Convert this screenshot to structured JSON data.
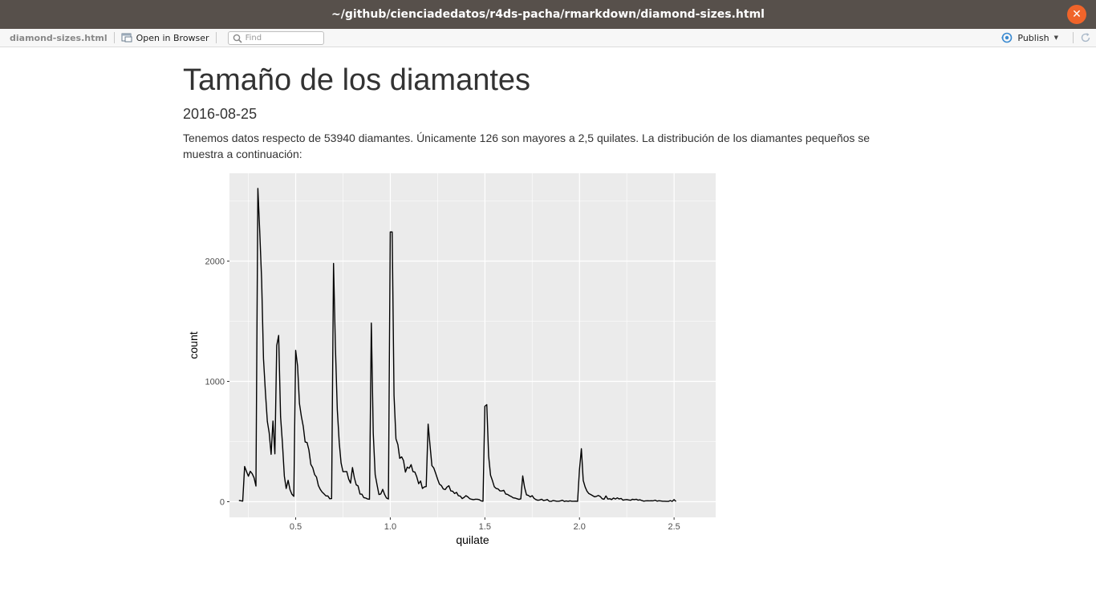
{
  "window": {
    "title": "~/github/cienciadedatos/r4ds-pacha/rmarkdown/diamond-sizes.html"
  },
  "toolbar": {
    "filename": "diamond-sizes.html",
    "open_label": "Open in Browser",
    "find_placeholder": "Find",
    "publish_label": "Publish"
  },
  "document": {
    "title": "Tamaño de los diamantes",
    "date": "2016-08-25",
    "paragraph": "Tenemos datos respecto de 53940 diamantes. Únicamente 126 son mayores a 2,5 quilates. La distribución de los diamantes pequeños se muestra a continuación:"
  },
  "colors": {
    "panel": "#ebebeb",
    "grid": "#ffffff",
    "line": "#000000",
    "titlebar": "#57504b",
    "close": "#f0642a"
  },
  "chart_data": {
    "type": "line",
    "xlabel": "quilate",
    "ylabel": "count",
    "xlim": [
      0.15,
      2.72
    ],
    "ylim": [
      -130,
      2730
    ],
    "xticks": [
      0.5,
      1.0,
      1.5,
      2.0,
      2.5
    ],
    "xtick_labels": [
      "0.5",
      "1.0",
      "1.5",
      "2.0",
      "2.5"
    ],
    "yticks": [
      0,
      1000,
      2000
    ],
    "ytick_labels": [
      "0",
      "1000",
      "2000"
    ],
    "grid": true,
    "series": [
      {
        "points": [
          [
            0.2,
            10
          ],
          [
            0.21,
            8
          ],
          [
            0.22,
            5
          ],
          [
            0.23,
            293
          ],
          [
            0.24,
            252
          ],
          [
            0.25,
            212
          ],
          [
            0.26,
            253
          ],
          [
            0.27,
            233
          ],
          [
            0.28,
            198
          ],
          [
            0.29,
            130
          ],
          [
            0.3,
            2604
          ],
          [
            0.31,
            2249
          ],
          [
            0.32,
            1840
          ],
          [
            0.33,
            1189
          ],
          [
            0.34,
            910
          ],
          [
            0.35,
            667
          ],
          [
            0.36,
            572
          ],
          [
            0.37,
            394
          ],
          [
            0.38,
            670
          ],
          [
            0.39,
            398
          ],
          [
            0.4,
            1299
          ],
          [
            0.41,
            1382
          ],
          [
            0.42,
            706
          ],
          [
            0.43,
            488
          ],
          [
            0.44,
            212
          ],
          [
            0.45,
            110
          ],
          [
            0.46,
            178
          ],
          [
            0.47,
            99
          ],
          [
            0.48,
            63
          ],
          [
            0.49,
            45
          ],
          [
            0.5,
            1258
          ],
          [
            0.51,
            1127
          ],
          [
            0.52,
            817
          ],
          [
            0.53,
            709
          ],
          [
            0.54,
            625
          ],
          [
            0.55,
            496
          ],
          [
            0.56,
            492
          ],
          [
            0.57,
            430
          ],
          [
            0.58,
            310
          ],
          [
            0.59,
            282
          ],
          [
            0.6,
            226
          ],
          [
            0.61,
            204
          ],
          [
            0.62,
            135
          ],
          [
            0.63,
            102
          ],
          [
            0.64,
            80
          ],
          [
            0.65,
            65
          ],
          [
            0.66,
            48
          ],
          [
            0.67,
            48
          ],
          [
            0.68,
            25
          ],
          [
            0.69,
            26
          ],
          [
            0.7,
            1981
          ],
          [
            0.71,
            1294
          ],
          [
            0.72,
            764
          ],
          [
            0.73,
            492
          ],
          [
            0.74,
            322
          ],
          [
            0.75,
            249
          ],
          [
            0.76,
            251
          ],
          [
            0.77,
            251
          ],
          [
            0.78,
            187
          ],
          [
            0.79,
            155
          ],
          [
            0.8,
            284
          ],
          [
            0.81,
            200
          ],
          [
            0.82,
            140
          ],
          [
            0.83,
            131
          ],
          [
            0.84,
            64
          ],
          [
            0.85,
            62
          ],
          [
            0.86,
            34
          ],
          [
            0.87,
            31
          ],
          [
            0.88,
            23
          ],
          [
            0.89,
            21
          ],
          [
            0.9,
            1485
          ],
          [
            0.91,
            570
          ],
          [
            0.92,
            226
          ],
          [
            0.93,
            142
          ],
          [
            0.94,
            59
          ],
          [
            0.95,
            65
          ],
          [
            0.96,
            103
          ],
          [
            0.97,
            59
          ],
          [
            0.98,
            31
          ],
          [
            0.99,
            23
          ],
          [
            1.0,
            2242
          ],
          [
            1.01,
            2242
          ],
          [
            1.02,
            883
          ],
          [
            1.03,
            523
          ],
          [
            1.04,
            475
          ],
          [
            1.05,
            361
          ],
          [
            1.06,
            373
          ],
          [
            1.07,
            342
          ],
          [
            1.08,
            246
          ],
          [
            1.09,
            287
          ],
          [
            1.1,
            278
          ],
          [
            1.11,
            308
          ],
          [
            1.12,
            251
          ],
          [
            1.13,
            246
          ],
          [
            1.14,
            207
          ],
          [
            1.15,
            149
          ],
          [
            1.16,
            172
          ],
          [
            1.17,
            110
          ],
          [
            1.18,
            123
          ],
          [
            1.19,
            126
          ],
          [
            1.2,
            645
          ],
          [
            1.21,
            473
          ],
          [
            1.22,
            300
          ],
          [
            1.23,
            279
          ],
          [
            1.24,
            236
          ],
          [
            1.25,
            187
          ],
          [
            1.26,
            146
          ],
          [
            1.27,
            134
          ],
          [
            1.28,
            106
          ],
          [
            1.29,
            101
          ],
          [
            1.3,
            122
          ],
          [
            1.31,
            133
          ],
          [
            1.32,
            89
          ],
          [
            1.33,
            87
          ],
          [
            1.34,
            68
          ],
          [
            1.35,
            77
          ],
          [
            1.36,
            50
          ],
          [
            1.37,
            46
          ],
          [
            1.38,
            26
          ],
          [
            1.39,
            36
          ],
          [
            1.4,
            50
          ],
          [
            1.41,
            40
          ],
          [
            1.42,
            25
          ],
          [
            1.43,
            20
          ],
          [
            1.44,
            17
          ],
          [
            1.45,
            21
          ],
          [
            1.46,
            21
          ],
          [
            1.47,
            17
          ],
          [
            1.48,
            7
          ],
          [
            1.49,
            4
          ],
          [
            1.5,
            793
          ],
          [
            1.51,
            807
          ],
          [
            1.52,
            381
          ],
          [
            1.53,
            220
          ],
          [
            1.54,
            174
          ],
          [
            1.55,
            124
          ],
          [
            1.56,
            109
          ],
          [
            1.57,
            106
          ],
          [
            1.58,
            89
          ],
          [
            1.59,
            89
          ],
          [
            1.6,
            95
          ],
          [
            1.61,
            64
          ],
          [
            1.62,
            61
          ],
          [
            1.63,
            50
          ],
          [
            1.64,
            43
          ],
          [
            1.65,
            32
          ],
          [
            1.66,
            30
          ],
          [
            1.67,
            25
          ],
          [
            1.68,
            19
          ],
          [
            1.69,
            24
          ],
          [
            1.7,
            215
          ],
          [
            1.71,
            119
          ],
          [
            1.72,
            57
          ],
          [
            1.73,
            52
          ],
          [
            1.74,
            40
          ],
          [
            1.75,
            50
          ],
          [
            1.76,
            28
          ],
          [
            1.77,
            17
          ],
          [
            1.78,
            12
          ],
          [
            1.79,
            15
          ],
          [
            1.8,
            21
          ],
          [
            1.81,
            9
          ],
          [
            1.82,
            13
          ],
          [
            1.83,
            18
          ],
          [
            1.84,
            4
          ],
          [
            1.85,
            3
          ],
          [
            1.86,
            9
          ],
          [
            1.87,
            7
          ],
          [
            1.88,
            4
          ],
          [
            1.89,
            4
          ],
          [
            1.9,
            7
          ],
          [
            1.91,
            12
          ],
          [
            1.92,
            2
          ],
          [
            1.93,
            6
          ],
          [
            1.94,
            3
          ],
          [
            1.95,
            7
          ],
          [
            1.96,
            4
          ],
          [
            1.97,
            4
          ],
          [
            1.98,
            5
          ],
          [
            1.99,
            3
          ],
          [
            2.0,
            265
          ],
          [
            2.01,
            440
          ],
          [
            2.02,
            177
          ],
          [
            2.03,
            122
          ],
          [
            2.04,
            86
          ],
          [
            2.05,
            67
          ],
          [
            2.06,
            59
          ],
          [
            2.07,
            50
          ],
          [
            2.08,
            41
          ],
          [
            2.09,
            45
          ],
          [
            2.1,
            52
          ],
          [
            2.11,
            43
          ],
          [
            2.12,
            25
          ],
          [
            2.13,
            21
          ],
          [
            2.14,
            48
          ],
          [
            2.15,
            22
          ],
          [
            2.16,
            25
          ],
          [
            2.17,
            18
          ],
          [
            2.18,
            31
          ],
          [
            2.19,
            22
          ],
          [
            2.2,
            32
          ],
          [
            2.21,
            23
          ],
          [
            2.22,
            27
          ],
          [
            2.23,
            13
          ],
          [
            2.24,
            16
          ],
          [
            2.25,
            18
          ],
          [
            2.26,
            15
          ],
          [
            2.27,
            12
          ],
          [
            2.28,
            20
          ],
          [
            2.29,
            17
          ],
          [
            2.3,
            21
          ],
          [
            2.31,
            13
          ],
          [
            2.32,
            16
          ],
          [
            2.33,
            9
          ],
          [
            2.34,
            5
          ],
          [
            2.35,
            7
          ],
          [
            2.36,
            8
          ],
          [
            2.37,
            7
          ],
          [
            2.38,
            8
          ],
          [
            2.39,
            7
          ],
          [
            2.4,
            13
          ],
          [
            2.41,
            5
          ],
          [
            2.42,
            8
          ],
          [
            2.43,
            6
          ],
          [
            2.44,
            4
          ],
          [
            2.45,
            4
          ],
          [
            2.46,
            3
          ],
          [
            2.47,
            3
          ],
          [
            2.48,
            9
          ],
          [
            2.49,
            3
          ],
          [
            2.5,
            17
          ],
          [
            2.51,
            2
          ]
        ]
      }
    ]
  }
}
